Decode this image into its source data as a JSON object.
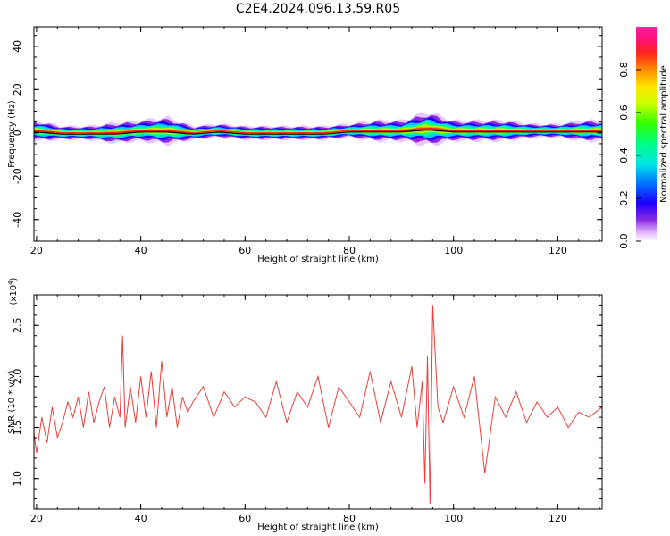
{
  "title": "C2E4.2024.096.13.59.R05",
  "chart_data": [
    {
      "type": "heatmap",
      "xlabel": "Height of straight line (km)",
      "ylabel": "Frequency (Hz)",
      "xlim": [
        19.5,
        128.5
      ],
      "ylim": [
        -50,
        49
      ],
      "xticks": [
        20,
        40,
        60,
        80,
        100,
        120
      ],
      "yticks": [
        -40,
        -20,
        0,
        20,
        40
      ],
      "colorbar": {
        "label": "Normalized spectral amplitude",
        "range": [
          0,
          1
        ],
        "ticks": [
          0.0,
          0.2,
          0.4,
          0.6,
          0.8
        ]
      },
      "ridge": {
        "description_values_x": [
          20,
          25,
          30,
          35,
          40,
          45,
          50,
          55,
          60,
          65,
          70,
          75,
          80,
          85,
          90,
          95,
          100,
          105,
          110,
          115,
          120,
          125,
          128
        ],
        "center_freq": [
          1,
          0,
          0,
          0,
          1,
          1,
          0,
          1,
          0,
          0,
          0,
          0,
          1,
          1,
          1,
          2,
          1,
          1,
          1,
          1,
          1,
          1,
          1
        ],
        "half_width": [
          3,
          2,
          2,
          3,
          3,
          4,
          2,
          2,
          2,
          2,
          2,
          2,
          2,
          3,
          3,
          5,
          3,
          3,
          3,
          2,
          2,
          3,
          3
        ]
      }
    },
    {
      "type": "line",
      "xlabel": "Height of straight line (km)",
      "ylabel": "SNR (10 * v/v)",
      "scale_label": "(x10",
      "scale_exp": "4",
      "scale_close": ")",
      "xlim": [
        19.5,
        128.5
      ],
      "ylim": [
        0.7,
        2.8
      ],
      "xticks": [
        20,
        40,
        60,
        80,
        100,
        120
      ],
      "yticks": [
        1.0,
        1.5,
        2.0,
        2.5
      ],
      "series": [
        {
          "color": "#e8403a",
          "x": [
            19.5,
            20,
            21,
            22,
            23,
            24,
            25,
            26,
            27,
            28,
            29,
            30,
            31,
            32,
            33,
            34,
            35,
            36,
            36.5,
            37,
            38,
            39,
            40,
            41,
            42,
            43,
            44,
            45,
            46,
            47,
            48,
            49,
            50,
            52,
            54,
            56,
            58,
            60,
            62,
            64,
            66,
            68,
            70,
            72,
            74,
            76,
            78,
            80,
            82,
            84,
            86,
            88,
            90,
            92,
            93,
            94,
            94.5,
            95,
            95.5,
            96,
            97,
            98,
            100,
            102,
            104,
            106,
            108,
            110,
            112,
            114,
            116,
            118,
            120,
            122,
            124,
            126,
            128.5
          ],
          "y": [
            1.45,
            1.25,
            1.6,
            1.35,
            1.7,
            1.4,
            1.55,
            1.75,
            1.6,
            1.8,
            1.5,
            1.85,
            1.55,
            1.75,
            1.9,
            1.5,
            1.8,
            1.6,
            2.4,
            1.5,
            1.9,
            1.55,
            2.0,
            1.6,
            2.05,
            1.5,
            2.15,
            1.6,
            1.9,
            1.5,
            1.8,
            1.65,
            1.75,
            1.9,
            1.6,
            1.85,
            1.7,
            1.8,
            1.75,
            1.6,
            1.95,
            1.55,
            1.85,
            1.7,
            2.0,
            1.5,
            1.9,
            1.75,
            1.6,
            2.05,
            1.55,
            1.95,
            1.6,
            2.1,
            1.5,
            1.95,
            0.95,
            2.2,
            0.75,
            2.7,
            1.7,
            1.55,
            1.9,
            1.6,
            2.0,
            1.05,
            1.8,
            1.6,
            1.85,
            1.55,
            1.75,
            1.6,
            1.7,
            1.5,
            1.65,
            1.6,
            1.7
          ]
        }
      ]
    }
  ]
}
